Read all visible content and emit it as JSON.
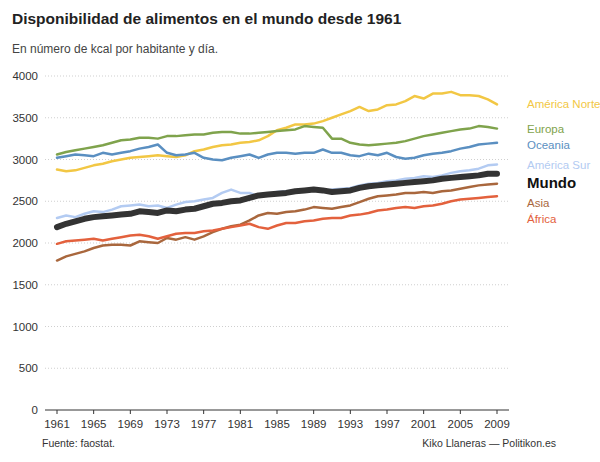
{
  "chart_data": {
    "type": "line",
    "title": "Disponibilidad de alimentos en el mundo desde 1961",
    "subtitle": "En número de kcal por habitante y día.",
    "annotations": [
      "Fuente: faostat.",
      "Kiko Llaneras — Politikon.es"
    ],
    "x": [
      1961,
      1962,
      1963,
      1964,
      1965,
      1966,
      1967,
      1968,
      1969,
      1970,
      1971,
      1972,
      1973,
      1974,
      1975,
      1976,
      1977,
      1978,
      1979,
      1980,
      1981,
      1982,
      1983,
      1984,
      1985,
      1986,
      1987,
      1988,
      1989,
      1990,
      1991,
      1992,
      1993,
      1994,
      1995,
      1996,
      1997,
      1998,
      1999,
      2000,
      2001,
      2002,
      2003,
      2004,
      2005,
      2006,
      2007,
      2008,
      2009
    ],
    "xlim": [
      1961,
      2009
    ],
    "xticks": [
      1961,
      1965,
      1969,
      1973,
      1977,
      1981,
      1985,
      1989,
      1993,
      1997,
      2001,
      2005,
      2009
    ],
    "ylim": [
      0,
      4000
    ],
    "yticks": [
      0,
      500,
      1000,
      1500,
      2000,
      2500,
      3000,
      3500,
      4000
    ],
    "grid": true,
    "legend": "right",
    "series": [
      {
        "name": "América Norte",
        "color": "#f2c744",
        "line_style": "solid",
        "values": [
          2880,
          2860,
          2870,
          2900,
          2930,
          2950,
          2980,
          3000,
          3020,
          3030,
          3040,
          3050,
          3040,
          3030,
          3050,
          3100,
          3120,
          3150,
          3170,
          3180,
          3200,
          3210,
          3230,
          3280,
          3350,
          3380,
          3420,
          3420,
          3430,
          3460,
          3500,
          3540,
          3580,
          3630,
          3580,
          3600,
          3650,
          3660,
          3700,
          3760,
          3730,
          3790,
          3790,
          3810,
          3770,
          3770,
          3760,
          3720,
          3660
        ]
      },
      {
        "name": "Europa",
        "color": "#7fa34c",
        "line_style": "solid",
        "values": [
          3060,
          3090,
          3110,
          3130,
          3150,
          3170,
          3200,
          3230,
          3240,
          3260,
          3260,
          3250,
          3280,
          3280,
          3290,
          3300,
          3300,
          3320,
          3330,
          3330,
          3310,
          3310,
          3320,
          3330,
          3340,
          3350,
          3360,
          3400,
          3390,
          3380,
          3250,
          3250,
          3200,
          3180,
          3170,
          3180,
          3190,
          3200,
          3220,
          3250,
          3280,
          3300,
          3320,
          3340,
          3360,
          3370,
          3400,
          3390,
          3370
        ]
      },
      {
        "name": "Oceania",
        "color": "#5a8fc1",
        "line_style": "solid",
        "values": [
          3020,
          3040,
          3060,
          3050,
          3040,
          3080,
          3060,
          3080,
          3100,
          3130,
          3150,
          3180,
          3080,
          3050,
          3060,
          3080,
          3020,
          3000,
          2990,
          3020,
          3040,
          3060,
          3020,
          3060,
          3080,
          3080,
          3070,
          3080,
          3080,
          3120,
          3080,
          3080,
          3050,
          3040,
          3070,
          3050,
          3080,
          3030,
          3010,
          3020,
          3050,
          3070,
          3080,
          3100,
          3130,
          3150,
          3180,
          3190,
          3200
        ]
      },
      {
        "name": "América Sur",
        "color": "#b3cbf2",
        "line_style": "solid",
        "values": [
          2300,
          2330,
          2310,
          2350,
          2380,
          2370,
          2400,
          2440,
          2450,
          2460,
          2440,
          2450,
          2420,
          2460,
          2490,
          2500,
          2520,
          2540,
          2600,
          2640,
          2600,
          2600,
          2560,
          2580,
          2610,
          2620,
          2630,
          2630,
          2630,
          2620,
          2640,
          2650,
          2660,
          2690,
          2710,
          2720,
          2740,
          2750,
          2770,
          2780,
          2800,
          2790,
          2810,
          2840,
          2860,
          2870,
          2890,
          2930,
          2940
        ]
      },
      {
        "name": "Mundo",
        "color": "#333333",
        "line_style": "thick",
        "values": [
          2190,
          2230,
          2260,
          2290,
          2310,
          2320,
          2330,
          2340,
          2350,
          2380,
          2370,
          2360,
          2390,
          2380,
          2400,
          2410,
          2440,
          2470,
          2480,
          2500,
          2510,
          2540,
          2570,
          2580,
          2590,
          2600,
          2620,
          2630,
          2640,
          2630,
          2610,
          2620,
          2630,
          2660,
          2680,
          2690,
          2700,
          2710,
          2720,
          2730,
          2740,
          2750,
          2770,
          2780,
          2790,
          2800,
          2810,
          2830,
          2830
        ]
      },
      {
        "name": "Asia",
        "color": "#a9673d",
        "line_style": "solid",
        "values": [
          1790,
          1840,
          1870,
          1900,
          1940,
          1970,
          1980,
          1980,
          1970,
          2020,
          2010,
          2000,
          2060,
          2040,
          2070,
          2040,
          2080,
          2130,
          2170,
          2200,
          2220,
          2270,
          2330,
          2360,
          2350,
          2370,
          2380,
          2400,
          2430,
          2420,
          2410,
          2430,
          2450,
          2490,
          2530,
          2560,
          2570,
          2580,
          2600,
          2600,
          2610,
          2600,
          2620,
          2630,
          2650,
          2670,
          2690,
          2700,
          2710
        ]
      },
      {
        "name": "África",
        "color": "#e3613d",
        "line_style": "solid",
        "values": [
          1990,
          2020,
          2030,
          2040,
          2050,
          2030,
          2050,
          2070,
          2090,
          2100,
          2080,
          2050,
          2080,
          2110,
          2120,
          2120,
          2140,
          2150,
          2170,
          2190,
          2210,
          2230,
          2190,
          2170,
          2210,
          2240,
          2240,
          2260,
          2270,
          2290,
          2300,
          2300,
          2330,
          2340,
          2360,
          2390,
          2400,
          2420,
          2430,
          2420,
          2440,
          2450,
          2470,
          2500,
          2520,
          2530,
          2540,
          2550,
          2560
        ]
      }
    ]
  }
}
